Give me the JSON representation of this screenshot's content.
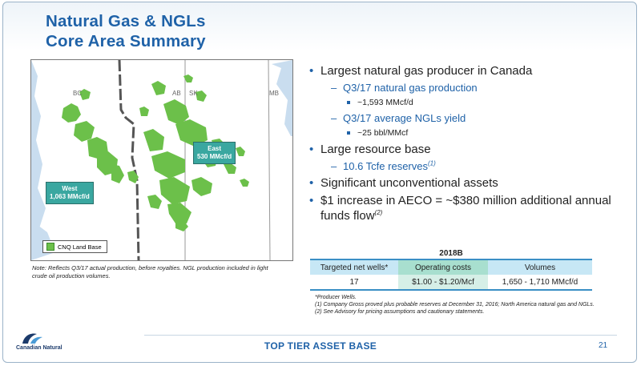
{
  "title": {
    "line1": "Natural Gas & NGLs",
    "line2": "Core Area Summary"
  },
  "map": {
    "provinces": {
      "bc": "BC",
      "ab": "AB",
      "sk": "SK",
      "mb": "MB"
    },
    "callouts": {
      "east": {
        "region": "East",
        "value": "530 MMcf/d"
      },
      "west": {
        "region": "West",
        "value": "1,063 MMcf/d"
      }
    },
    "legend_label": "CNQ Land Base",
    "colors": {
      "land_base": "#6cc04a",
      "callout": "#3aa7a0"
    }
  },
  "note": "Note: Reflects Q3/17 actual production, before royalties. NGL production included in light crude oil production volumes.",
  "bullets": {
    "b1": "Largest natural gas producer in Canada",
    "b1_1": "Q3/17 natural gas production",
    "b1_1_1": "~1,593 MMcf/d",
    "b1_2": "Q3/17 average NGLs yield",
    "b1_2_1": "~25 bbl/MMcf",
    "b2": "Large resource base",
    "b2_1": "10.6 Tcfe reserves",
    "b2_1_sup": "(1)",
    "b3": "Significant unconventional assets",
    "b4": "$1 increase in AECO = ~$380 million additional annual funds flow",
    "b4_sup": "(2)"
  },
  "table": {
    "year": "2018B",
    "headers": [
      "Targeted net wells*",
      "Operating costs",
      "Volumes"
    ],
    "row": [
      "17",
      "$1.00 - $1.20/Mcf",
      "1,650 - 1,710 MMcf/d"
    ]
  },
  "footnotes": {
    "f0": "*Producer Wells.",
    "f1": "(1) Company Gross proved plus probable reserves at December 31, 2016; North America natural gas and NGLs.",
    "f2": "(2) See Advisory for pricing assumptions and cautionary statements."
  },
  "footer": {
    "text": "TOP TIER ASSET BASE",
    "page": "21"
  },
  "logo": {
    "name": "Canadian Natural",
    "icon": "canadian-natural-logo-icon"
  }
}
